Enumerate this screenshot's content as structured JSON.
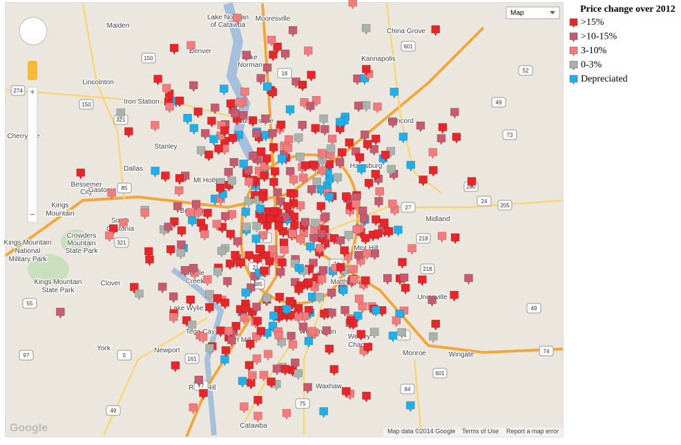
{
  "map_type_control": "Map",
  "legend": {
    "title": "Price change over 2012",
    "items": [
      {
        "label": ">15%",
        "color": "#e8262a"
      },
      {
        "label": ">10-15%",
        "color": "#c65a6e"
      },
      {
        "label": "3-10%",
        "color": "#f47b7b"
      },
      {
        "label": "0-3%",
        "color": "#a9b3ad"
      },
      {
        "label": "Depreciated",
        "color": "#1fb0ea"
      }
    ]
  },
  "places": [
    "Maiden",
    "Lake Norman",
    "of Catawba",
    "Mooresville",
    "China Grove",
    "Denver",
    "Lake",
    "Norman",
    "Kannapolis",
    "Lincolnton",
    "Iron Station",
    "Huntersville",
    "Concord",
    "Cherryville",
    "Stanley",
    "Harrisburg",
    "Dallas",
    "Mt Holly",
    "Bessemer",
    "City",
    "Gastonia",
    "Kings",
    "Mountain",
    "Belmont",
    "Charlotte",
    "Midland",
    "South",
    "Gastonia",
    "Crowders",
    "Mountain",
    "State Park",
    "Kings Mountain",
    "National",
    "Military Park",
    "Mint Hill",
    "Kings Mountain",
    "State Park",
    "Steele",
    "Creek",
    "Clover",
    "Matthews",
    "Unionville",
    "Lake Wylie",
    "Tega Cay",
    "Fort Mill",
    "Weddington",
    "Wesley",
    "Chapel",
    "York",
    "Newport",
    "Monroe",
    "Wingate",
    "Rock Hill",
    "Waxhaw",
    "Catawba"
  ],
  "roads": [
    "274",
    "150",
    "150",
    "321",
    "321",
    "85",
    "77",
    "77",
    "485",
    "74",
    "74",
    "601",
    "601",
    "49",
    "73",
    "200",
    "24",
    "205",
    "218",
    "218",
    "52",
    "27",
    "16",
    "21",
    "55",
    "97",
    "5",
    "161",
    "75",
    "84",
    "49",
    "74",
    "49"
  ],
  "footer": {
    "logo": "Google",
    "map_data": "Map data ©2014 Google",
    "terms": "Terms of Use",
    "report": "Report a map error"
  }
}
